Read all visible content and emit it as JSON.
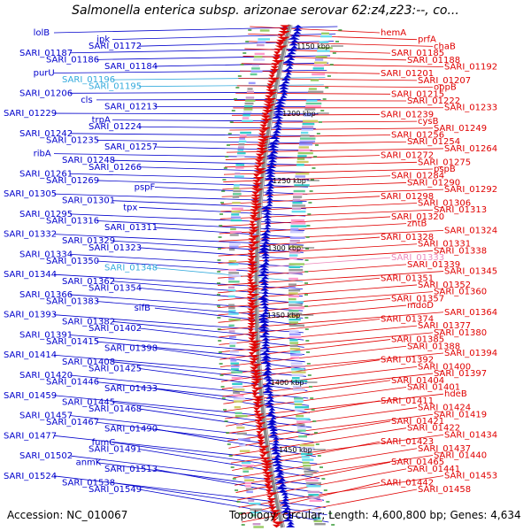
{
  "title": "Salmonella enterica subsp. arizonae serovar 62:z4,z23:--, co...",
  "footer": {
    "accession": "Accession: NC_010067",
    "summary": "Topology: circular; Length: 4,600,800 bp; Genes: 4,634"
  },
  "colors": {
    "forward": "#0000cc",
    "reverse": "#e00000",
    "highlight_forward": "#33aadd",
    "highlight_reverse": "#ee88bb",
    "backbone": "#888888",
    "tick": "#333333"
  },
  "ticks": [
    "1150 kbp",
    "1200 kbp",
    "1250 kbp",
    "1300 kbp",
    "1350 kbp",
    "1400 kbp",
    "1450 kbp"
  ],
  "left_labels": [
    {
      "text": "lolB",
      "h": false
    },
    {
      "text": "ipk",
      "h": false
    },
    {
      "text": "SARI_01172",
      "h": false
    },
    {
      "text": "SARI_01187",
      "h": false
    },
    {
      "text": "SARI_01186",
      "h": false
    },
    {
      "text": "SARI_01184",
      "h": false
    },
    {
      "text": "purU",
      "h": false
    },
    {
      "text": "SARI_01196",
      "h": true
    },
    {
      "text": "SARI_01195",
      "h": true
    },
    {
      "text": "SARI_01206",
      "h": false
    },
    {
      "text": "cls",
      "h": false
    },
    {
      "text": "SARI_01213",
      "h": false
    },
    {
      "text": "SARI_01229",
      "h": false
    },
    {
      "text": "trpA",
      "h": false
    },
    {
      "text": "SARI_01224",
      "h": false
    },
    {
      "text": "SARI_01242",
      "h": false
    },
    {
      "text": "SARI_01235",
      "h": false
    },
    {
      "text": "SARI_01257",
      "h": false
    },
    {
      "text": "ribA",
      "h": false
    },
    {
      "text": "SARI_01248",
      "h": false
    },
    {
      "text": "SARI_01266",
      "h": false
    },
    {
      "text": "SARI_01261",
      "h": false
    },
    {
      "text": "SARI_01269",
      "h": false
    },
    {
      "text": "pspF",
      "h": false
    },
    {
      "text": "SARI_01305",
      "h": false
    },
    {
      "text": "SARI_01301",
      "h": false
    },
    {
      "text": "tpx",
      "h": false
    },
    {
      "text": "SARI_01295",
      "h": false
    },
    {
      "text": "SARI_01316",
      "h": false
    },
    {
      "text": "SARI_01311",
      "h": false
    },
    {
      "text": "SARI_01332",
      "h": false
    },
    {
      "text": "SARI_01329",
      "h": false
    },
    {
      "text": "SARI_01323",
      "h": false
    },
    {
      "text": "SARI_01334",
      "h": false
    },
    {
      "text": "SARI_01350",
      "h": false
    },
    {
      "text": "SARI_01348",
      "h": true
    },
    {
      "text": "SARI_01344",
      "h": false
    },
    {
      "text": "SARI_01362",
      "h": false
    },
    {
      "text": "SARI_01354",
      "h": false
    },
    {
      "text": "SARI_01366",
      "h": false
    },
    {
      "text": "SARI_01383",
      "h": false
    },
    {
      "text": "sifB",
      "h": false
    },
    {
      "text": "SARI_01393",
      "h": false
    },
    {
      "text": "SARI_01382",
      "h": false
    },
    {
      "text": "SARI_01402",
      "h": false
    },
    {
      "text": "SARI_01391",
      "h": false
    },
    {
      "text": "SARI_01415",
      "h": false
    },
    {
      "text": "SARI_01398",
      "h": false
    },
    {
      "text": "SARI_01414",
      "h": false
    },
    {
      "text": "SARI_01408",
      "h": false
    },
    {
      "text": "SARI_01425",
      "h": false
    },
    {
      "text": "SARI_01420",
      "h": false
    },
    {
      "text": "SARI_01446",
      "h": false
    },
    {
      "text": "SARI_01433",
      "h": false
    },
    {
      "text": "SARI_01459",
      "h": false
    },
    {
      "text": "SARI_01445",
      "h": false
    },
    {
      "text": "SARI_01468",
      "h": false
    },
    {
      "text": "SARI_01457",
      "h": false
    },
    {
      "text": "SARI_01467",
      "h": false
    },
    {
      "text": "SARI_01490",
      "h": false
    },
    {
      "text": "SARI_01477",
      "h": false
    },
    {
      "text": "fumC",
      "h": false
    },
    {
      "text": "SARI_01491",
      "h": false
    },
    {
      "text": "SARI_01502",
      "h": false
    },
    {
      "text": "anmK",
      "h": false
    },
    {
      "text": "SARI_01513",
      "h": false
    },
    {
      "text": "SARI_01524",
      "h": false
    },
    {
      "text": "SARI_01538",
      "h": false
    },
    {
      "text": "SARI_01549",
      "h": false
    }
  ],
  "right_labels": [
    {
      "text": "hemA",
      "h": false
    },
    {
      "text": "prfA",
      "h": false
    },
    {
      "text": "chaB",
      "h": false
    },
    {
      "text": "SARI_01185",
      "h": false
    },
    {
      "text": "SARI_01188",
      "h": false
    },
    {
      "text": "SARI_01192",
      "h": false
    },
    {
      "text": "SARI_01201",
      "h": false
    },
    {
      "text": "SARI_01207",
      "h": false
    },
    {
      "text": "oppB",
      "h": false
    },
    {
      "text": "SARI_01215",
      "h": false
    },
    {
      "text": "SARI_01222",
      "h": false
    },
    {
      "text": "SARI_01233",
      "h": false
    },
    {
      "text": "SARI_01239",
      "h": false
    },
    {
      "text": "cysB",
      "h": false
    },
    {
      "text": "SARI_01249",
      "h": false
    },
    {
      "text": "SARI_01256",
      "h": false
    },
    {
      "text": "SARI_01254",
      "h": false
    },
    {
      "text": "SARI_01264",
      "h": false
    },
    {
      "text": "SARI_01272",
      "h": false
    },
    {
      "text": "SARI_01275",
      "h": false
    },
    {
      "text": "pspB",
      "h": false
    },
    {
      "text": "SARI_01284",
      "h": false
    },
    {
      "text": "SARI_01290",
      "h": false
    },
    {
      "text": "SARI_01292",
      "h": false
    },
    {
      "text": "SARI_01298",
      "h": false
    },
    {
      "text": "SARI_01306",
      "h": false
    },
    {
      "text": "SARI_01313",
      "h": false
    },
    {
      "text": "SARI_01320",
      "h": false
    },
    {
      "text": "zntB",
      "h": false
    },
    {
      "text": "SARI_01324",
      "h": false
    },
    {
      "text": "SARI_01328",
      "h": false
    },
    {
      "text": "SARI_01331",
      "h": false
    },
    {
      "text": "SARI_01338",
      "h": false
    },
    {
      "text": "SARI_01333",
      "h": true
    },
    {
      "text": "SARI_01339",
      "h": false
    },
    {
      "text": "SARI_01345",
      "h": false
    },
    {
      "text": "SARI_01351",
      "h": false
    },
    {
      "text": "SARI_01352",
      "h": false
    },
    {
      "text": "SARI_01360",
      "h": false
    },
    {
      "text": "SARI_01357",
      "h": false
    },
    {
      "text": "mdoD",
      "h": false
    },
    {
      "text": "SARI_01364",
      "h": false
    },
    {
      "text": "SARI_01374",
      "h": false
    },
    {
      "text": "SARI_01377",
      "h": false
    },
    {
      "text": "SARI_01380",
      "h": false
    },
    {
      "text": "SARI_01385",
      "h": false
    },
    {
      "text": "SARI_01388",
      "h": false
    },
    {
      "text": "SARI_01394",
      "h": false
    },
    {
      "text": "SARI_01392",
      "h": false
    },
    {
      "text": "SARI_01400",
      "h": false
    },
    {
      "text": "SARI_01397",
      "h": false
    },
    {
      "text": "SARI_01404",
      "h": false
    },
    {
      "text": "SARI_01401",
      "h": false
    },
    {
      "text": "hdeB",
      "h": false
    },
    {
      "text": "SARI_01411",
      "h": false
    },
    {
      "text": "SARI_01424",
      "h": false
    },
    {
      "text": "SARI_01419",
      "h": false
    },
    {
      "text": "SARI_01421",
      "h": false
    },
    {
      "text": "SARI_01422",
      "h": false
    },
    {
      "text": "SARI_01434",
      "h": false
    },
    {
      "text": "SARI_01423",
      "h": false
    },
    {
      "text": "SARI_01437",
      "h": false
    },
    {
      "text": "SARI_01440",
      "h": false
    },
    {
      "text": "SARI_01465",
      "h": false
    },
    {
      "text": "SARI_01441",
      "h": false
    },
    {
      "text": "SARI_01453",
      "h": false
    },
    {
      "text": "SARI_01442",
      "h": false
    },
    {
      "text": "SARI_01458",
      "h": false
    }
  ]
}
